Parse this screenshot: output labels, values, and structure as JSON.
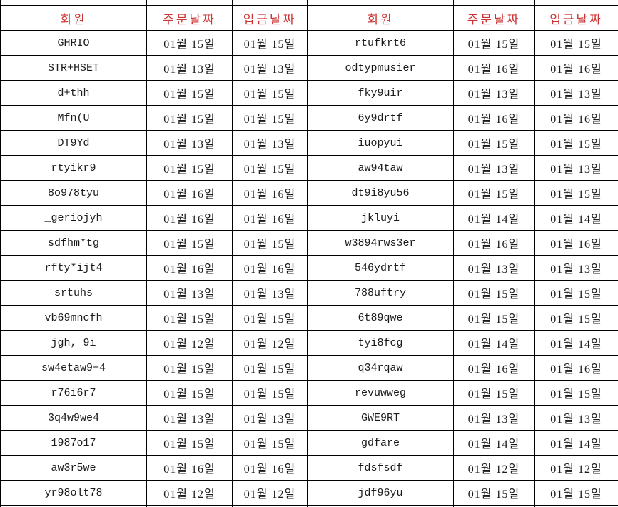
{
  "colors": {
    "header_text": "#CC3333",
    "body_text": "#1a1a1a",
    "border": "#000000",
    "background": "#ffffff"
  },
  "header": {
    "member": "회원",
    "order_date": "주문날짜",
    "deposit_date": "입금날짜"
  },
  "left_rows": [
    {
      "member": "GHRIO",
      "order": "01월 15일",
      "deposit": "01월 15일"
    },
    {
      "member": "STR+HSET",
      "order": "01월 13일",
      "deposit": "01월 13일"
    },
    {
      "member": "d+thh",
      "order": "01월 15일",
      "deposit": "01월 15일"
    },
    {
      "member": "Mfn(U",
      "order": "01월 15일",
      "deposit": "01월 15일"
    },
    {
      "member": "DT9Yd",
      "order": "01월 13일",
      "deposit": "01월 13일"
    },
    {
      "member": "rtyikr9",
      "order": "01월 15일",
      "deposit": "01월 15일"
    },
    {
      "member": "8o978tyu",
      "order": "01월 16일",
      "deposit": "01월 16일"
    },
    {
      "member": "_geriojyh",
      "order": "01월 16일",
      "deposit": "01월 16일"
    },
    {
      "member": "sdfhm*tg",
      "order": "01월 15일",
      "deposit": "01월 15일"
    },
    {
      "member": "rfty*ijt4",
      "order": "01월 16일",
      "deposit": "01월 16일"
    },
    {
      "member": "srtuhs",
      "order": "01월 13일",
      "deposit": "01월 13일"
    },
    {
      "member": "vb69mncfh",
      "order": "01월 15일",
      "deposit": "01월 15일"
    },
    {
      "member": "jgh, 9i",
      "order": "01월 12일",
      "deposit": "01월 12일"
    },
    {
      "member": "sw4etaw9+4",
      "order": "01월 15일",
      "deposit": "01월 15일"
    },
    {
      "member": "r76i6r7",
      "order": "01월 15일",
      "deposit": "01월 15일"
    },
    {
      "member": "3q4w9we4",
      "order": "01월 13일",
      "deposit": "01월 13일"
    },
    {
      "member": "1987o17",
      "order": "01월 15일",
      "deposit": "01월 15일"
    },
    {
      "member": "aw3r5we",
      "order": "01월 16일",
      "deposit": "01월 16일"
    },
    {
      "member": "yr98olt78",
      "order": "01월 12일",
      "deposit": "01월 12일"
    }
  ],
  "right_rows": [
    {
      "member": "rtufkrt6",
      "order": "01월 15일",
      "deposit": "01월 15일"
    },
    {
      "member": "odtypmusier",
      "order": "01월 16일",
      "deposit": "01월 16일"
    },
    {
      "member": "fky9uir",
      "order": "01월 13일",
      "deposit": "01월 13일"
    },
    {
      "member": "6y9drtf",
      "order": "01월 16일",
      "deposit": "01월 16일"
    },
    {
      "member": "iuopyui",
      "order": "01월 15일",
      "deposit": "01월 15일"
    },
    {
      "member": "aw94taw",
      "order": "01월 13일",
      "deposit": "01월 13일"
    },
    {
      "member": "dt9i8yu56",
      "order": "01월 15일",
      "deposit": "01월 15일"
    },
    {
      "member": "jkluyi",
      "order": "01월 14일",
      "deposit": "01월 14일"
    },
    {
      "member": "w3894rws3er",
      "order": "01월 16일",
      "deposit": "01월 16일"
    },
    {
      "member": "546ydrtf",
      "order": "01월 13일",
      "deposit": "01월 13일"
    },
    {
      "member": "788uftry",
      "order": "01월 15일",
      "deposit": "01월 15일"
    },
    {
      "member": "6t89qwe",
      "order": "01월 15일",
      "deposit": "01월 15일"
    },
    {
      "member": "tyi8fcg",
      "order": "01월 14일",
      "deposit": "01월 14일"
    },
    {
      "member": "q34rqaw",
      "order": "01월 16일",
      "deposit": "01월 16일"
    },
    {
      "member": "revuwweg",
      "order": "01월 15일",
      "deposit": "01월 15일"
    },
    {
      "member": "GWE9RT",
      "order": "01월 13일",
      "deposit": "01월 13일"
    },
    {
      "member": "gdfare",
      "order": "01월 14일",
      "deposit": "01월 14일"
    },
    {
      "member": "fdsfsdf",
      "order": "01월 12일",
      "deposit": "01월 12일"
    },
    {
      "member": "jdf96yu",
      "order": "01월 15일",
      "deposit": "01월 15일"
    }
  ]
}
